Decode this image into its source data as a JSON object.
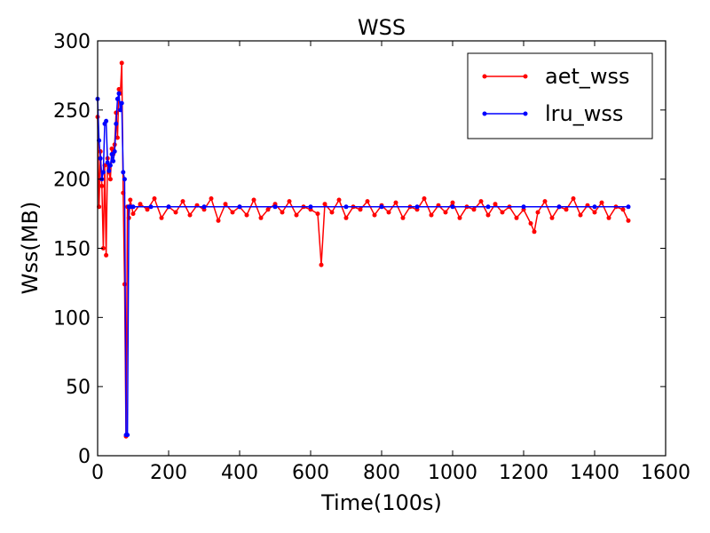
{
  "chart_data": {
    "type": "line",
    "title": "WSS",
    "xlabel": "Time(100s)",
    "ylabel": "Wss(MB)",
    "xlim": [
      0,
      1600
    ],
    "ylim": [
      0,
      300
    ],
    "xticks": [
      "0",
      "200",
      "400",
      "600",
      "800",
      "1000",
      "1200",
      "1400",
      "1600"
    ],
    "yticks": [
      "0",
      "50",
      "100",
      "150",
      "200",
      "250",
      "300"
    ],
    "grid": false,
    "legend_position": "top-right",
    "series": [
      {
        "name": "aet_wss",
        "color": "#ff0000",
        "marker": "circle",
        "x": [
          0,
          4,
          8,
          12,
          16,
          20,
          24,
          28,
          32,
          36,
          40,
          44,
          48,
          52,
          56,
          60,
          64,
          68,
          72,
          76,
          80,
          84,
          88,
          92,
          100,
          120,
          140,
          160,
          180,
          200,
          220,
          240,
          260,
          280,
          300,
          320,
          340,
          360,
          380,
          400,
          420,
          440,
          460,
          480,
          500,
          520,
          540,
          560,
          580,
          600,
          620,
          630,
          640,
          660,
          680,
          700,
          720,
          740,
          760,
          780,
          800,
          820,
          840,
          860,
          880,
          900,
          920,
          940,
          960,
          980,
          1000,
          1020,
          1040,
          1060,
          1080,
          1100,
          1120,
          1140,
          1160,
          1180,
          1200,
          1220,
          1230,
          1240,
          1260,
          1280,
          1300,
          1320,
          1340,
          1360,
          1380,
          1400,
          1420,
          1440,
          1460,
          1480,
          1495
        ],
        "y": [
          245,
          180,
          220,
          195,
          150,
          210,
          145,
          215,
          205,
          200,
          222,
          218,
          225,
          248,
          230,
          265,
          262,
          284,
          190,
          124,
          14,
          180,
          172,
          185,
          175,
          182,
          178,
          186,
          172,
          180,
          176,
          184,
          174,
          181,
          178,
          186,
          170,
          182,
          176,
          180,
          174,
          185,
          172,
          178,
          182,
          176,
          184,
          174,
          180,
          178,
          175,
          138,
          182,
          176,
          185,
          172,
          180,
          178,
          184,
          174,
          181,
          176,
          183,
          172,
          180,
          178,
          186,
          174,
          181,
          176,
          183,
          172,
          180,
          178,
          184,
          174,
          182,
          176,
          180,
          172,
          178,
          168,
          162,
          176,
          184,
          172,
          180,
          178,
          186,
          174,
          181,
          176,
          183,
          172,
          180,
          178,
          170
        ]
      },
      {
        "name": "lru_wss",
        "color": "#0000ff",
        "marker": "circle",
        "x": [
          0,
          4,
          8,
          12,
          16,
          20,
          24,
          28,
          32,
          36,
          40,
          44,
          48,
          52,
          56,
          60,
          64,
          68,
          72,
          76,
          80,
          84,
          88,
          92,
          100,
          150,
          200,
          300,
          400,
          500,
          600,
          700,
          800,
          900,
          1000,
          1100,
          1200,
          1300,
          1400,
          1495
        ],
        "y": [
          258,
          228,
          215,
          200,
          205,
          240,
          242,
          212,
          206,
          210,
          218,
          213,
          220,
          240,
          258,
          262,
          250,
          255,
          205,
          200,
          15,
          15,
          180,
          180,
          180,
          180,
          180,
          180,
          180,
          180,
          180,
          180,
          180,
          180,
          180,
          180,
          180,
          180,
          180,
          180
        ]
      }
    ]
  }
}
